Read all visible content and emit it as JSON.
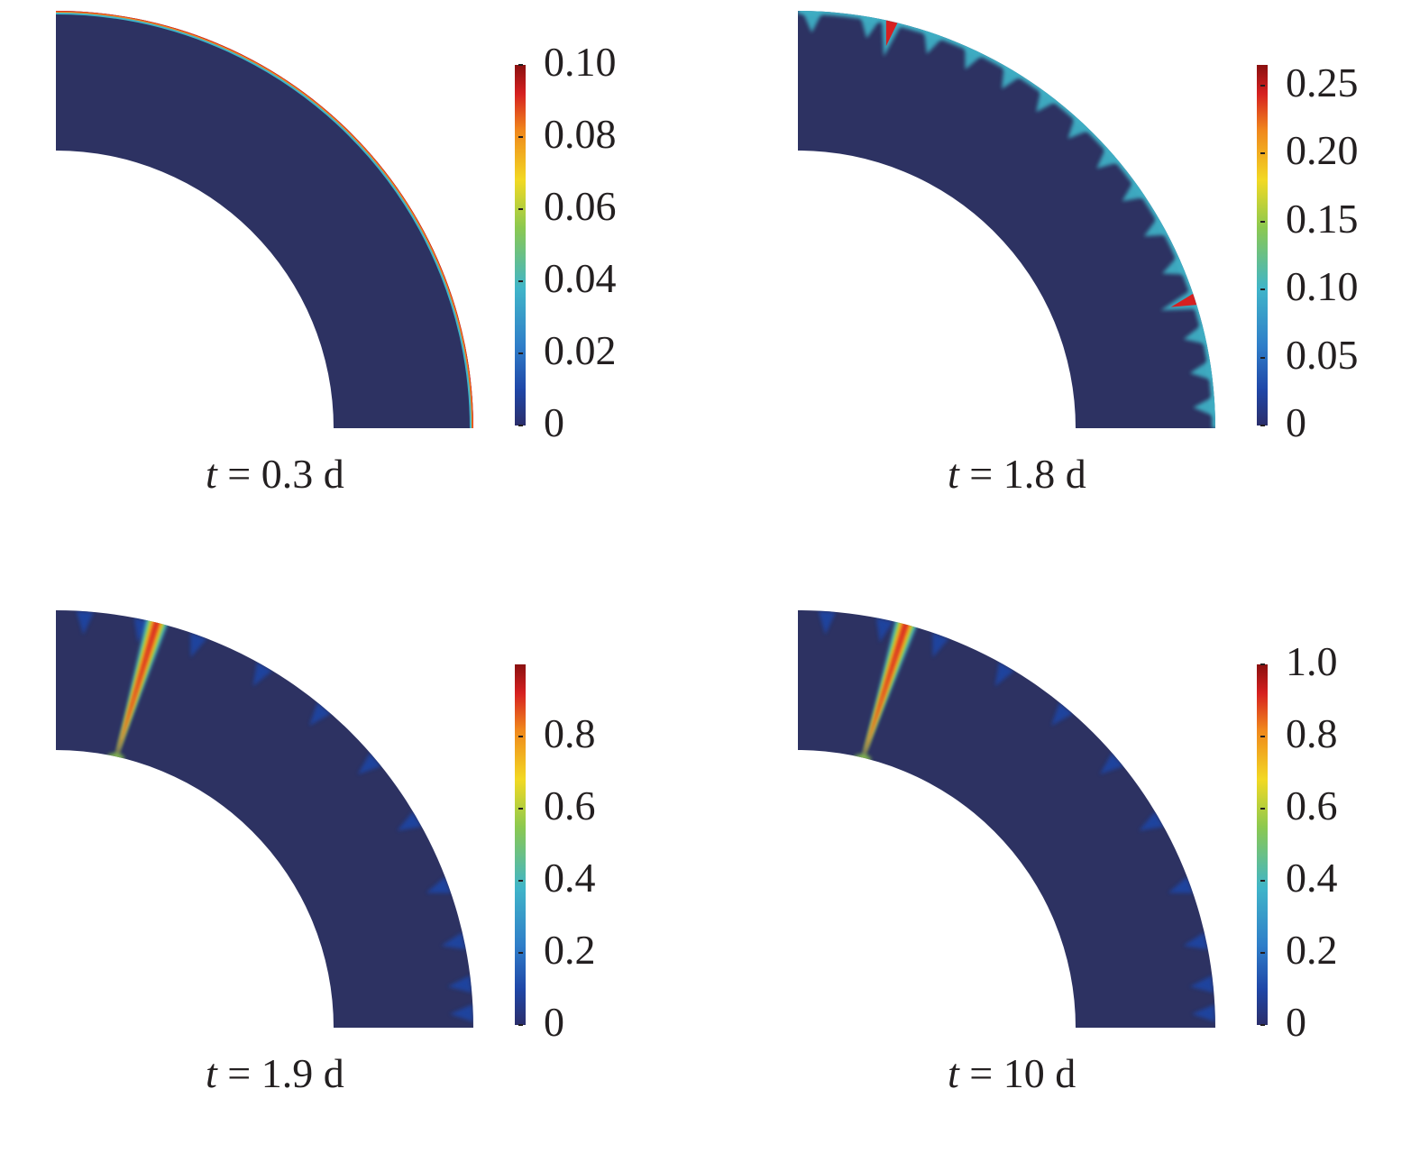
{
  "colormap": [
    "#2b2e6b",
    "#1f47a8",
    "#2f7ec9",
    "#40b5c9",
    "#8cc94f",
    "#f2d923",
    "#f0861c",
    "#d62020",
    "#8a1010"
  ],
  "background_color": "#2d3262",
  "panels": [
    {
      "caption_var": "t",
      "caption_rest": " = 0.3 d",
      "colorbar": {
        "min": 0,
        "max": 0.1,
        "ticks": [
          "0.10",
          "0.08",
          "0.06",
          "0.04",
          "0.02",
          "0"
        ],
        "tick_values": [
          0.1,
          0.08,
          0.06,
          0.04,
          0.02,
          0
        ]
      },
      "feature": "outer-rim"
    },
    {
      "caption_var": "t",
      "caption_rest": " = 1.8 d",
      "colorbar": {
        "min": 0,
        "max": 0.265,
        "ticks": [
          "0.25",
          "0.20",
          "0.15",
          "0.10",
          "0.05",
          "0"
        ],
        "tick_values": [
          0.25,
          0.2,
          0.15,
          0.1,
          0.05,
          0
        ]
      },
      "feature": "rim-cracks"
    },
    {
      "caption_var": "t",
      "caption_rest": " = 1.9 d",
      "colorbar": {
        "min": 0,
        "max": 1.0,
        "ticks": [
          "0.8",
          "0.6",
          "0.4",
          "0.2",
          "0"
        ],
        "tick_values": [
          0.8,
          0.6,
          0.4,
          0.2,
          0
        ]
      },
      "feature": "through-crack"
    },
    {
      "caption_var": "t",
      "caption_rest": " = 10 d",
      "colorbar": {
        "min": 0,
        "max": 1.0,
        "ticks": [
          "1.0",
          "0.8",
          "0.6",
          "0.4",
          "0.2",
          "0"
        ],
        "tick_values": [
          1.0,
          0.8,
          0.6,
          0.4,
          0.2,
          0
        ]
      },
      "feature": "through-crack"
    }
  ]
}
